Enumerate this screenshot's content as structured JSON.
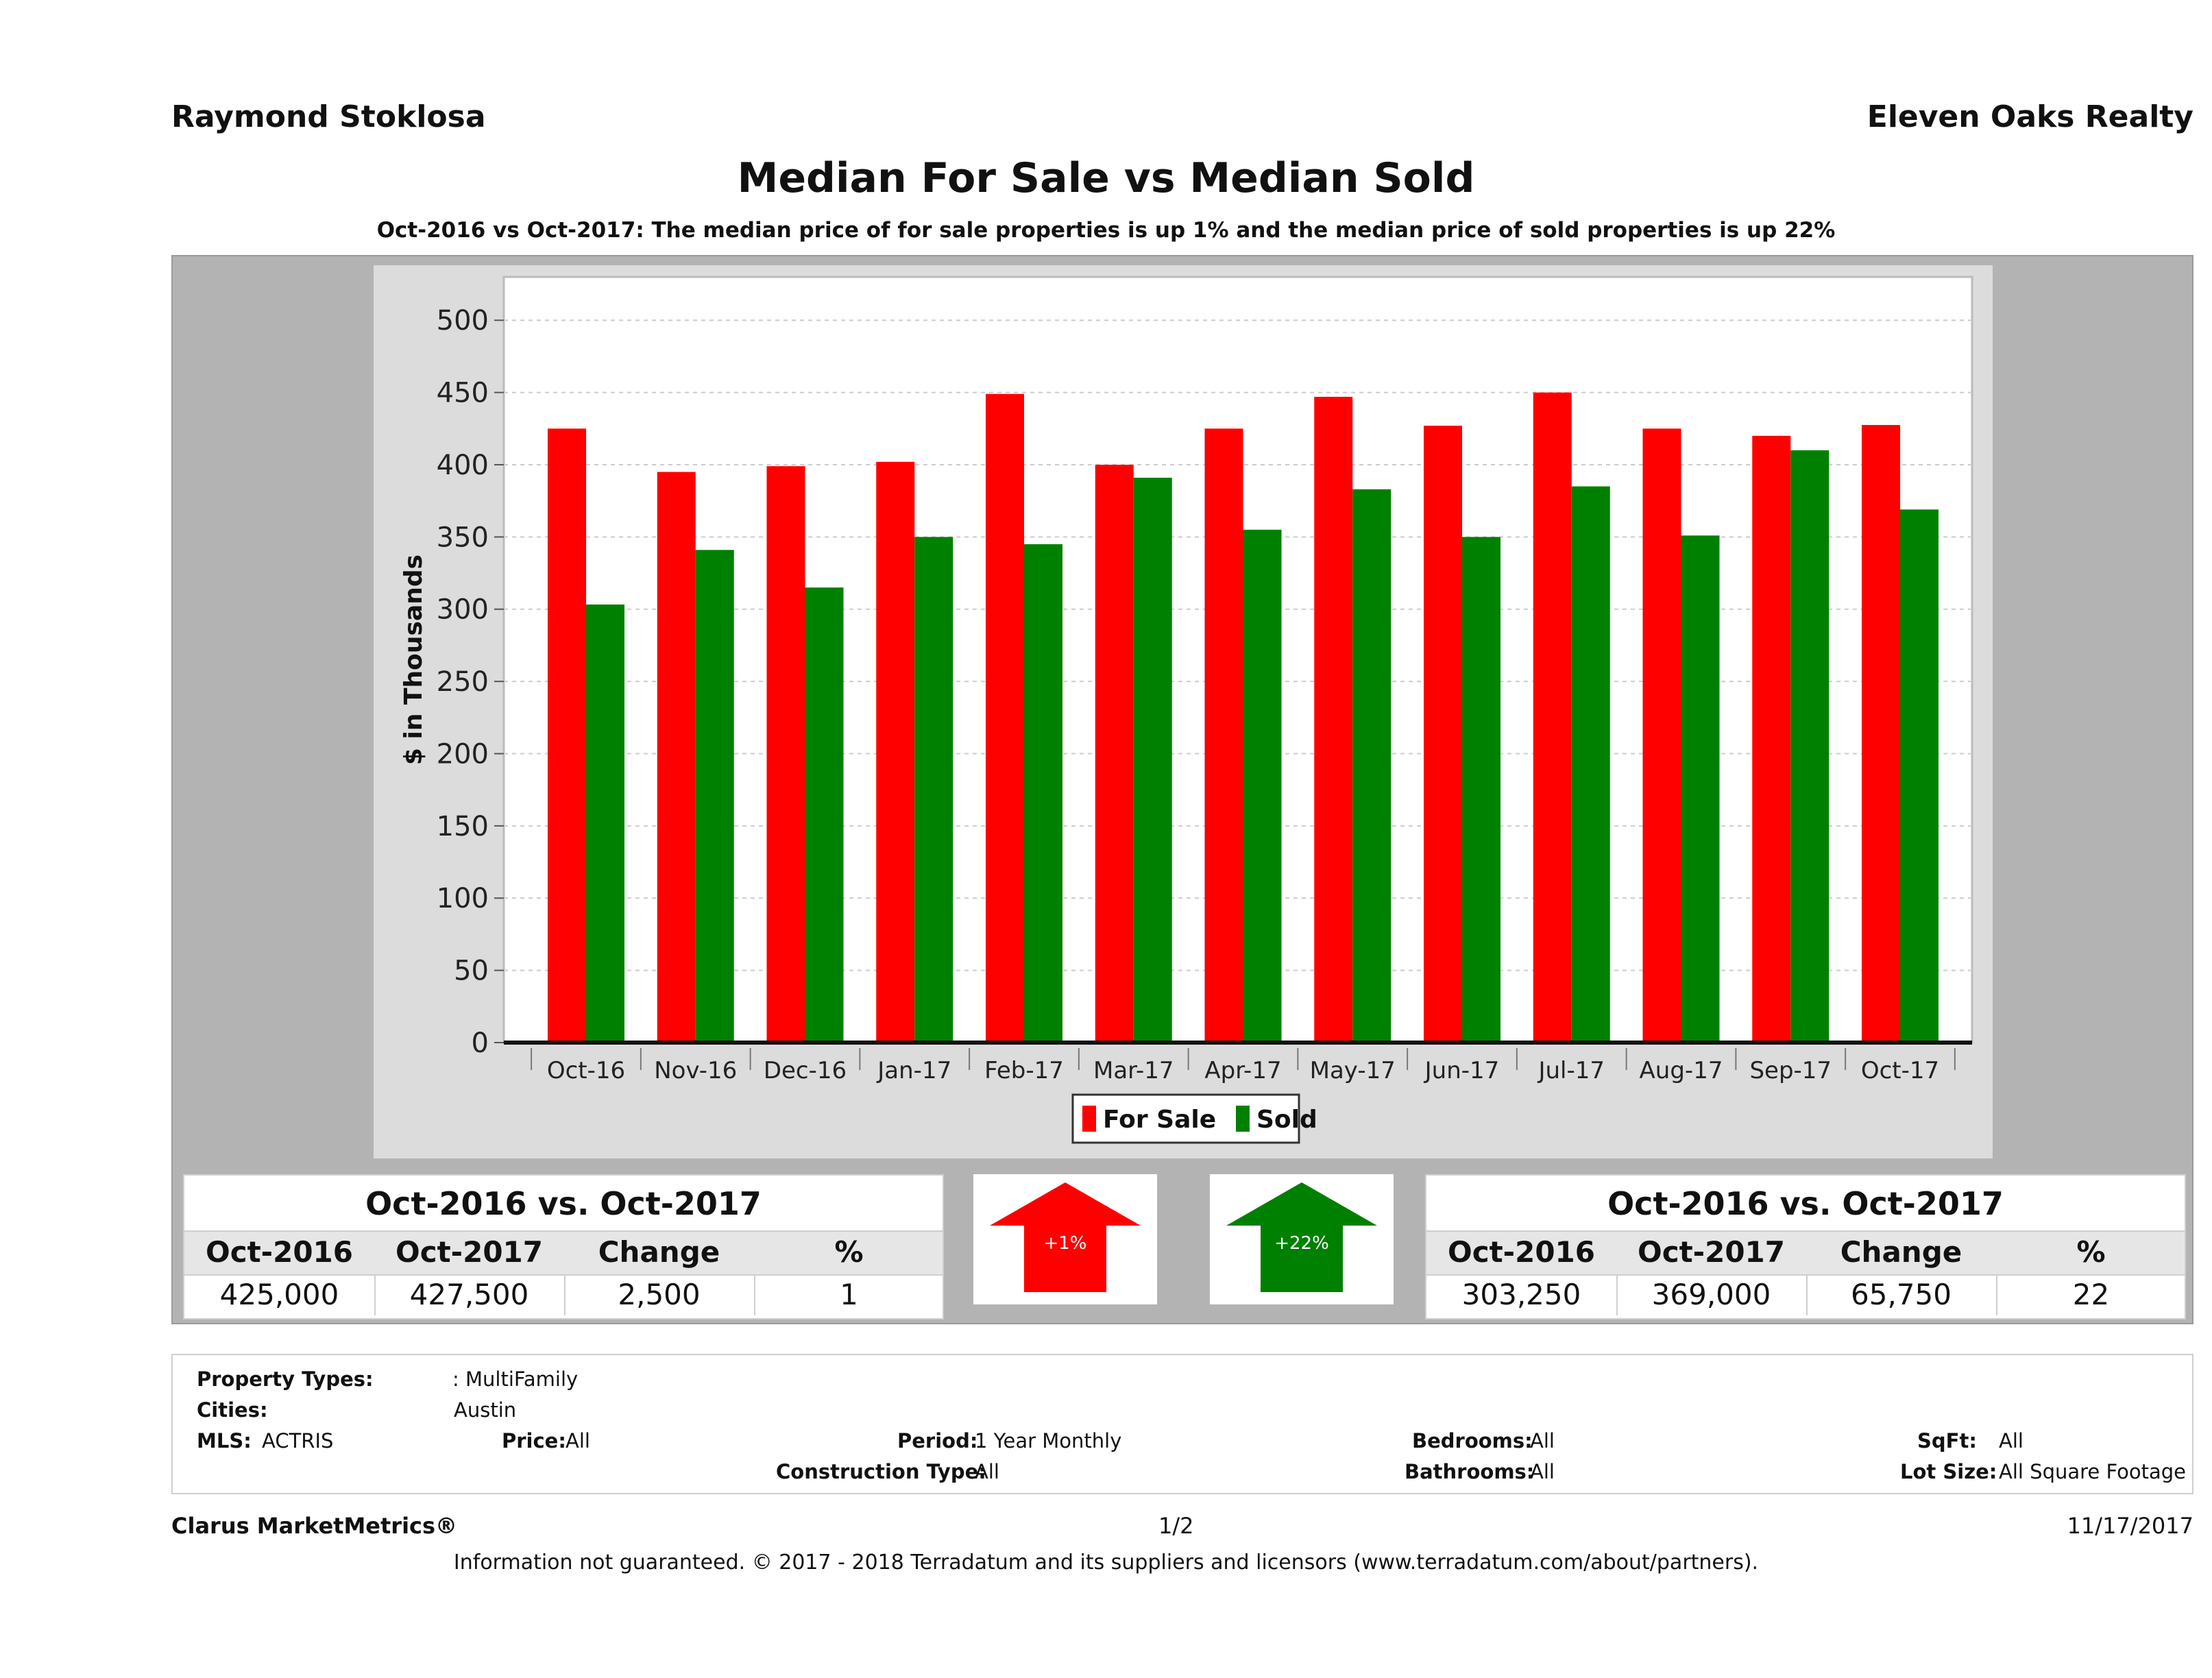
{
  "header": {
    "agent": "Raymond Stoklosa",
    "brokerage": "Eleven Oaks Realty"
  },
  "chart_data": {
    "type": "bar",
    "title": "Median For Sale vs Median Sold",
    "subtitle": "Oct-2016 vs Oct-2017: The median price of for sale properties is up 1% and the median price of sold properties is up 22%",
    "ylabel": "$ in Thousands",
    "xlabel": "",
    "ylim": [
      0,
      530
    ],
    "yticks": [
      0,
      50,
      100,
      150,
      200,
      250,
      300,
      350,
      400,
      450,
      500
    ],
    "grid": true,
    "legend_position": "bottom",
    "categories": [
      "Oct-16",
      "Nov-16",
      "Dec-16",
      "Jan-17",
      "Feb-17",
      "Mar-17",
      "Apr-17",
      "May-17",
      "Jun-17",
      "Jul-17",
      "Aug-17",
      "Sep-17",
      "Oct-17"
    ],
    "series": [
      {
        "name": "For Sale",
        "color": "#ff0000",
        "values": [
          425,
          395,
          399,
          402,
          449,
          400,
          425,
          447,
          427,
          450,
          425,
          420,
          427.5
        ]
      },
      {
        "name": "Sold",
        "color": "#008000",
        "values": [
          303.25,
          341,
          315,
          350,
          345,
          391,
          355,
          383,
          350,
          385,
          351,
          410,
          369
        ]
      }
    ]
  },
  "for_sale_stats": {
    "title": "Oct-2016 vs. Oct-2017",
    "headers": [
      "Oct-2016",
      "Oct-2017",
      "Change",
      "%"
    ],
    "values": [
      "425,000",
      "427,500",
      "2,500",
      "1"
    ]
  },
  "sold_stats": {
    "title": "Oct-2016 vs. Oct-2017",
    "headers": [
      "Oct-2016",
      "Oct-2017",
      "Change",
      "%"
    ],
    "values": [
      "303,250",
      "369,000",
      "65,750",
      "22"
    ]
  },
  "arrows": {
    "for_sale": {
      "label": "+1%",
      "color": "#ff0000"
    },
    "sold": {
      "label": "+22%",
      "color": "#008000"
    }
  },
  "filters": {
    "property_types_label": "Property Types:",
    "property_types_value": ": MultiFamily",
    "cities_label": "Cities:",
    "cities_value": "Austin",
    "mls_label": "MLS:",
    "mls_value": "ACTRIS",
    "price_label": "Price:",
    "price_value": "All",
    "period_label": "Period:",
    "period_value": "1 Year Monthly",
    "construction_label": "Construction Type:",
    "construction_value": "All",
    "bedrooms_label": "Bedrooms:",
    "bedrooms_value": "All",
    "bathrooms_label": "Bathrooms:",
    "bathrooms_value": "All",
    "sqft_label": "SqFt:",
    "sqft_value": "All",
    "lotsize_label": "Lot Size:",
    "lotsize_value": "All Square Footage"
  },
  "footer": {
    "brand": "Clarus MarketMetrics®",
    "page": "1/2",
    "date": "11/17/2017",
    "disclaimer": "Information not guaranteed. © 2017 - 2018 Terradatum and its suppliers and licensors (www.terradatum.com/about/partners)."
  }
}
